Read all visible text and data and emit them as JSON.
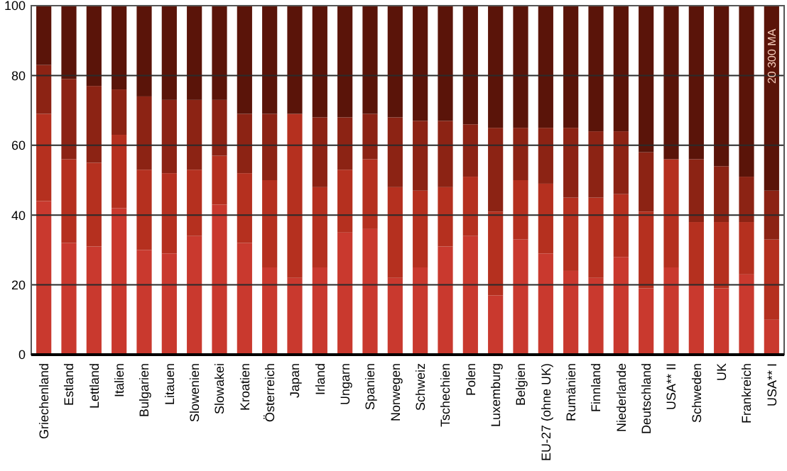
{
  "chart_data": {
    "type": "bar",
    "stacked": true,
    "categories": [
      "Griechenland",
      "Estland",
      "Lettland",
      "Italien",
      "Bulgarien",
      "Litauen",
      "Slowenien",
      "Slowakei",
      "Kroatien",
      "Österreich",
      "Japan",
      "Irland",
      "Ungarn",
      "Spanien",
      "Norwegen",
      "Schweiz",
      "Tschechien",
      "Polen",
      "Luxemburg",
      "Belgien",
      "EU-27 (ohne UK)",
      "Rumänien",
      "Finnland",
      "Niederlande",
      "Deutschland",
      "USA** II",
      "Schweden",
      "UK",
      "Frankreich",
      "USA** I"
    ],
    "series": [
      {
        "color": "#c9392e",
        "values": [
          44,
          32,
          31,
          42,
          30,
          29,
          34,
          43,
          32,
          25,
          22,
          25,
          35,
          36,
          22,
          25,
          31,
          34,
          17,
          33,
          29,
          24,
          22,
          28,
          19,
          25,
          20,
          19,
          23,
          10
        ]
      },
      {
        "color": "#b5301f",
        "values": [
          25,
          24,
          24,
          21,
          23,
          23,
          19,
          14,
          20,
          25,
          47,
          23,
          18,
          20,
          26,
          22,
          17,
          17,
          24,
          17,
          20,
          21,
          23,
          18,
          22,
          31,
          18,
          19,
          15,
          23
        ]
      },
      {
        "color": "#8c2314",
        "values": [
          14,
          23,
          22,
          13,
          21,
          21,
          20,
          16,
          17,
          19,
          0,
          20,
          15,
          13,
          20,
          20,
          19,
          15,
          24,
          15,
          16,
          20,
          19,
          18,
          17,
          0,
          18,
          16,
          13,
          14
        ]
      },
      {
        "color": "#5a1409",
        "values": [
          17,
          21,
          23,
          24,
          26,
          27,
          27,
          27,
          31,
          31,
          31,
          32,
          32,
          31,
          32,
          33,
          33,
          34,
          35,
          35,
          35,
          35,
          36,
          36,
          42,
          44,
          44,
          46,
          49,
          53
        ]
      }
    ],
    "ylim": [
      0,
      100
    ],
    "yticks": [
      0,
      20,
      40,
      60,
      80,
      100
    ],
    "grid": "y",
    "annotations": [
      "20 300 MA"
    ]
  }
}
